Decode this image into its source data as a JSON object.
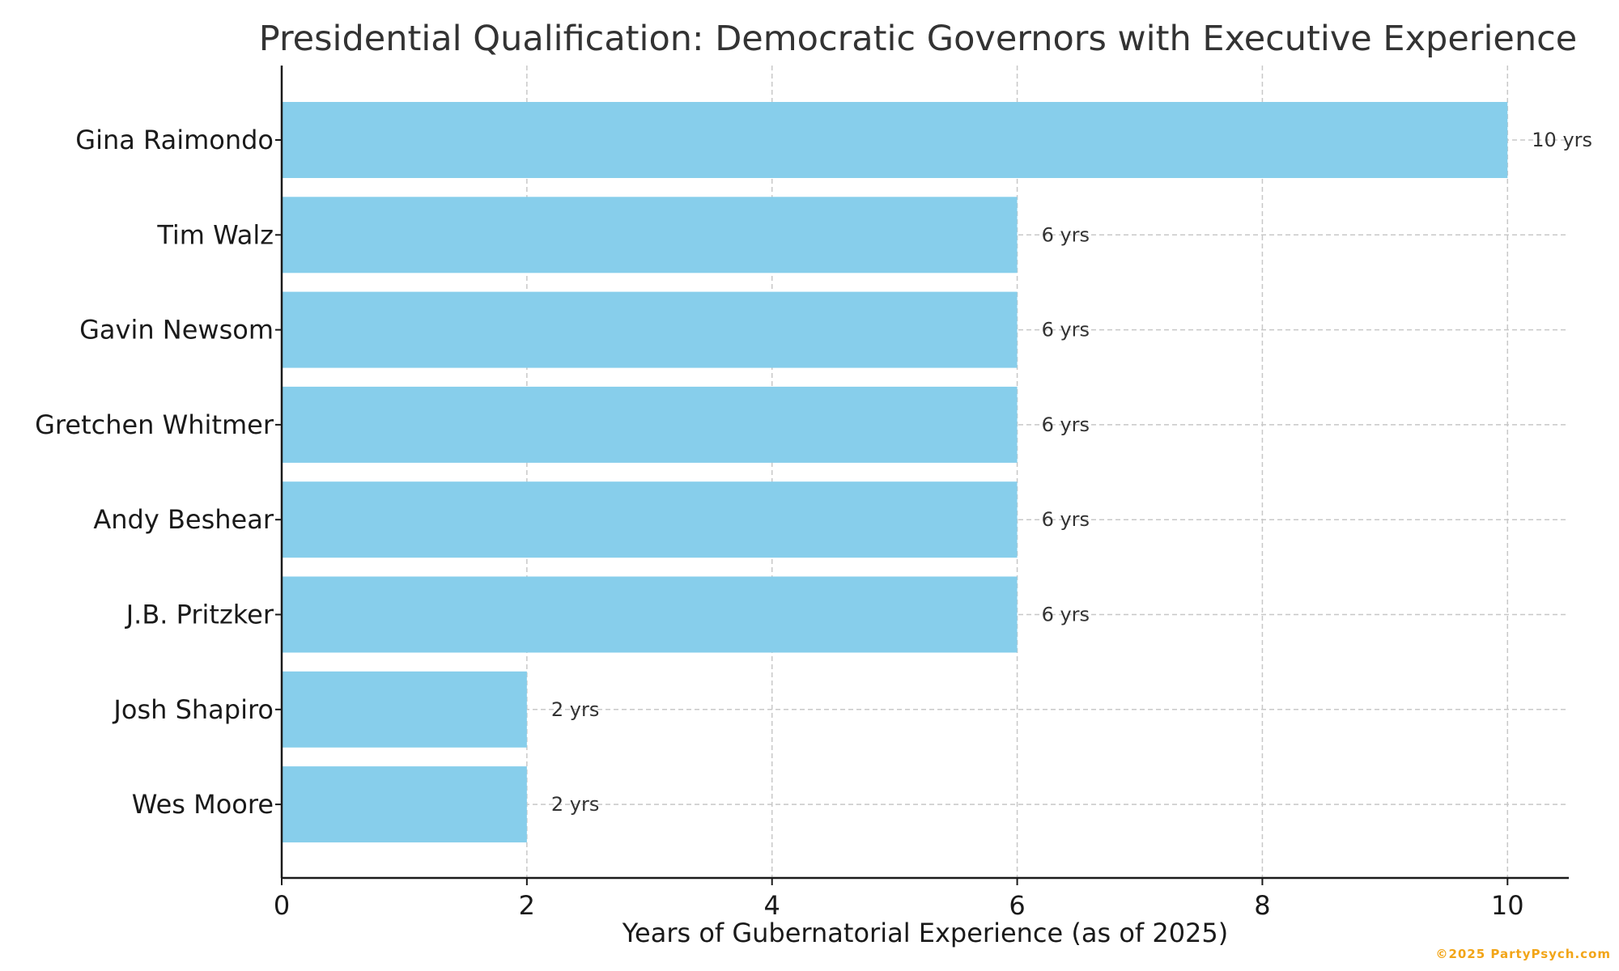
{
  "chart_data": {
    "type": "bar",
    "orientation": "horizontal",
    "title": "Presidential Qualification: Democratic Governors with Executive Experience",
    "xlabel": "Years of Gubernatorial Experience (as of 2025)",
    "ylabel": "",
    "categories": [
      "Gina Raimondo",
      "Tim Walz",
      "Gavin Newsom",
      "Gretchen Whitmer",
      "Andy Beshear",
      "J.B. Pritzker",
      "Josh Shapiro",
      "Wes Moore"
    ],
    "values": [
      10,
      6,
      6,
      6,
      6,
      6,
      2,
      2
    ],
    "data_labels": [
      "10 yrs",
      "6 yrs",
      "6 yrs",
      "6 yrs",
      "6 yrs",
      "6 yrs",
      "2 yrs",
      "2 yrs"
    ],
    "xlim": [
      0,
      10.5
    ],
    "xticks": [
      0,
      2,
      4,
      6,
      8,
      10
    ],
    "xtick_labels": [
      "0",
      "2",
      "4",
      "6",
      "8",
      "10"
    ],
    "grid": true,
    "bar_color": "#87ceeb",
    "grid_color": "#c8c8c8",
    "axis_color": "#1a1a1a"
  },
  "footer": {
    "watermark": "©2025 PartyPsych.com"
  }
}
